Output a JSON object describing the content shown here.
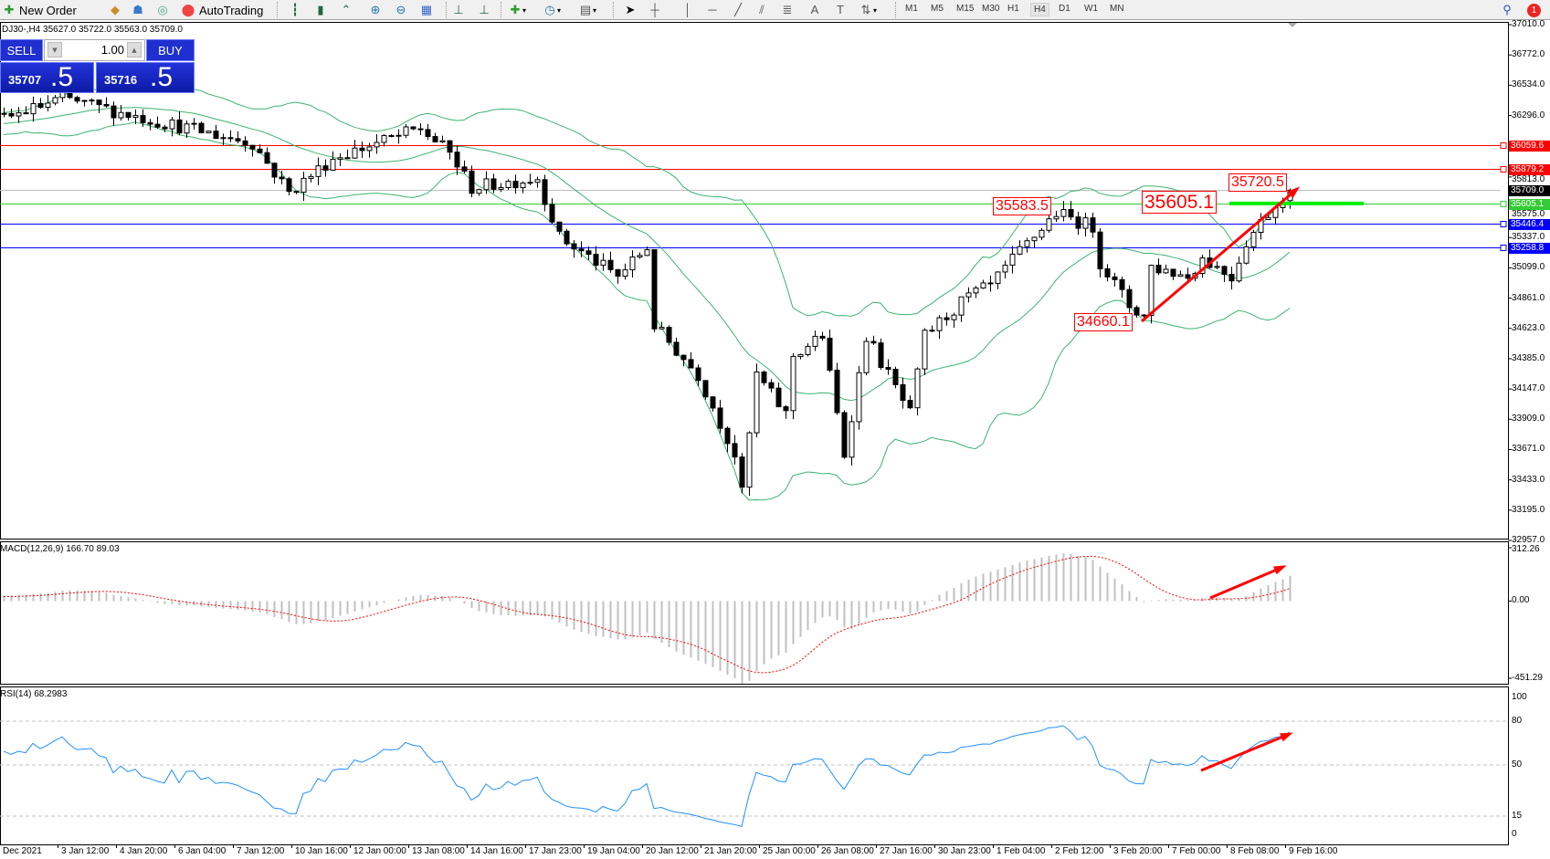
{
  "toolbar": {
    "new_order": "New Order",
    "autotrading": "AutoTrading",
    "timeframes": [
      "M1",
      "M5",
      "M15",
      "M30",
      "H1",
      "H4",
      "D1",
      "W1",
      "MN"
    ],
    "active_timeframe": "H4",
    "notification_count": "1"
  },
  "chart": {
    "info": "DJ30-,H4  35627.0 35722.0 35563.0 35709.0",
    "symbol": "DJ30-",
    "timeframe": "H4",
    "ohlc": {
      "open": 35627.0,
      "high": 35722.0,
      "low": 35563.0,
      "close": 35709.0
    }
  },
  "trade_panel": {
    "sell_label": "SELL",
    "buy_label": "BUY",
    "lot": "1.00",
    "sell_price_main": "35707",
    "sell_price_frac": ".5",
    "buy_price_main": "35716",
    "buy_price_frac": ".5"
  },
  "colors": {
    "bull": "#ffffff",
    "bear": "#000000",
    "bands": "#3cb371",
    "red": "#ff0000",
    "blue": "#0000ff",
    "green": "#00ee00",
    "accent": "#1f2fd0"
  },
  "chart_data": {
    "type": "candlestick",
    "price_ticks": [
      "37010.0",
      "36772.0",
      "36534.0",
      "36296.0",
      "35813.0",
      "35575.0",
      "35337.0",
      "35099.0",
      "34861.0",
      "34623.0",
      "34385.0",
      "34147.0",
      "33909.0",
      "33671.0",
      "33433.0",
      "33195.0",
      "32957.0"
    ],
    "ylim": [
      32957.0,
      37010.0
    ],
    "levels": [
      {
        "value": "36059.6",
        "color": "#ff0000"
      },
      {
        "value": "35879.2",
        "color": "#ff0000"
      },
      {
        "value": "35709.0",
        "color": "#000000",
        "line": "#c0c0c0"
      },
      {
        "value": "35605.1",
        "color": "#33cc33"
      },
      {
        "value": "35446.4",
        "color": "#0000ff"
      },
      {
        "value": "35258.8",
        "color": "#0000ff"
      }
    ],
    "price_keypoints": [
      [
        0,
        36270
      ],
      [
        8,
        36430
      ],
      [
        22,
        36236
      ],
      [
        34,
        36080
      ],
      [
        39,
        35690
      ],
      [
        45,
        35963
      ],
      [
        57,
        36193
      ],
      [
        61,
        36000
      ],
      [
        64,
        35727
      ],
      [
        73,
        35806
      ],
      [
        76,
        35340
      ],
      [
        84,
        35030
      ],
      [
        88,
        35260
      ],
      [
        89,
        34645
      ],
      [
        95,
        34257
      ],
      [
        100,
        33634
      ],
      [
        101,
        33325
      ],
      [
        103,
        34257
      ],
      [
        107,
        33950
      ],
      [
        108,
        34410
      ],
      [
        112,
        34566
      ],
      [
        115,
        33634
      ],
      [
        118,
        34566
      ],
      [
        124,
        33950
      ],
      [
        126,
        34566
      ],
      [
        132,
        34875
      ],
      [
        135,
        34953
      ],
      [
        139,
        35225
      ],
      [
        144,
        35533
      ],
      [
        149,
        35418
      ],
      [
        150,
        35146
      ],
      [
        154,
        34800
      ],
      [
        156,
        34723
      ],
      [
        157,
        35110
      ],
      [
        162,
        35030
      ],
      [
        164,
        35175
      ],
      [
        168,
        35030
      ],
      [
        170,
        35304
      ],
      [
        173,
        35533
      ],
      [
        176,
        35709
      ]
    ],
    "indicators": {
      "bollinger": "20,2",
      "macd_label": "MACD(12,26,9) 166.70 89.03",
      "rsi_label": "RSI(14) 68.2983"
    },
    "macd_ticks": [
      "312.26",
      "0.00",
      "-451.29"
    ],
    "macd_range": [
      -451.29,
      312.26
    ],
    "rsi_ticks": [
      "100",
      "80",
      "50",
      "15",
      "0"
    ],
    "rsi_levels": [
      80,
      50,
      15
    ],
    "annotations": [
      "35583.5",
      "35605.1",
      "35720.5",
      "34660.1"
    ],
    "time_labels": [
      "Dec 2021",
      "3 Jan 12:00",
      "4 Jan 20:00",
      "6 Jan 04:00",
      "7 Jan 12:00",
      "10 Jan 16:00",
      "12 Jan 00:00",
      "13 Jan 08:00",
      "14 Jan 16:00",
      "17 Jan 23:00",
      "19 Jan 04:00",
      "20 Jan 12:00",
      "21 Jan 20:00",
      "25 Jan 00:00",
      "26 Jan 08:00",
      "27 Jan 16:00",
      "30 Jan 23:00",
      "1 Feb 04:00",
      "2 Feb 12:00",
      "3 Feb 20:00",
      "7 Feb 00:00",
      "8 Feb 08:00",
      "9 Feb 16:00"
    ]
  }
}
